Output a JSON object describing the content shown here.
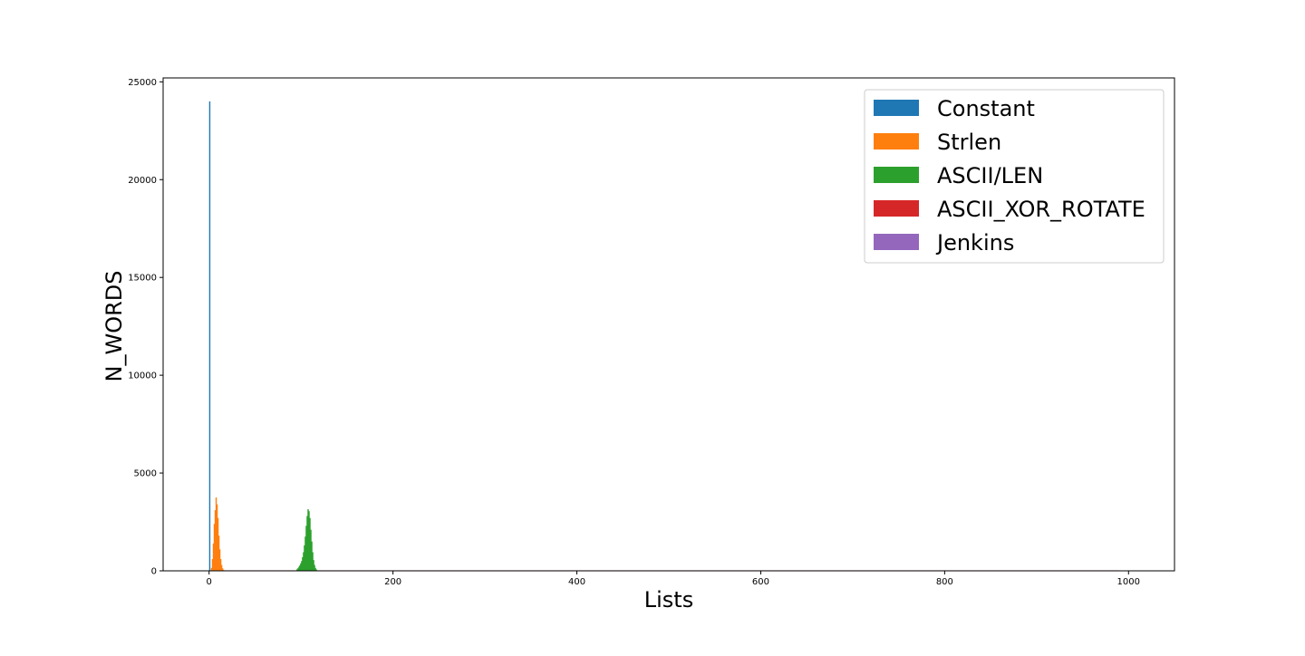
{
  "chart_data": {
    "type": "bar",
    "title": "",
    "xlabel": "Lists",
    "ylabel": "N_WORDS",
    "xlim": [
      -50,
      1050
    ],
    "ylim": [
      0,
      25200
    ],
    "x_ticks": [
      0,
      200,
      400,
      600,
      800,
      1000
    ],
    "y_ticks": [
      0,
      5000,
      10000,
      15000,
      20000,
      25000
    ],
    "grid": false,
    "legend_position": "upper right",
    "series": [
      {
        "name": "Constant",
        "color": "#1f77b4",
        "points": [
          [
            0,
            24000
          ]
        ]
      },
      {
        "name": "Strlen",
        "color": "#ff7f0e",
        "points": [
          [
            2,
            150
          ],
          [
            3,
            600
          ],
          [
            4,
            1400
          ],
          [
            5,
            2400
          ],
          [
            6,
            3100
          ],
          [
            7,
            3750
          ],
          [
            8,
            3400
          ],
          [
            9,
            2700
          ],
          [
            10,
            1800
          ],
          [
            11,
            1100
          ],
          [
            12,
            600
          ],
          [
            13,
            300
          ],
          [
            14,
            130
          ],
          [
            15,
            50
          ]
        ]
      },
      {
        "name": "ASCII/LEN",
        "color": "#2ca02c",
        "points": [
          [
            95,
            80
          ],
          [
            96,
            130
          ],
          [
            97,
            200
          ],
          [
            98,
            280
          ],
          [
            99,
            380
          ],
          [
            100,
            500
          ],
          [
            101,
            700
          ],
          [
            102,
            950
          ],
          [
            103,
            1300
          ],
          [
            104,
            1750
          ],
          [
            105,
            2300
          ],
          [
            106,
            2800
          ],
          [
            107,
            3150
          ],
          [
            108,
            3050
          ],
          [
            109,
            2700
          ],
          [
            110,
            2100
          ],
          [
            111,
            1500
          ],
          [
            112,
            950
          ],
          [
            113,
            550
          ],
          [
            114,
            300
          ],
          [
            115,
            150
          ],
          [
            116,
            70
          ]
        ]
      },
      {
        "name": "ASCII_XOR_ROTATE",
        "color": "#d62728",
        "baseline": 25,
        "range": [
          0,
          990
        ]
      },
      {
        "name": "Jenkins",
        "color": "#9467bd",
        "baseline": 24,
        "range": [
          0,
          990
        ]
      }
    ]
  }
}
